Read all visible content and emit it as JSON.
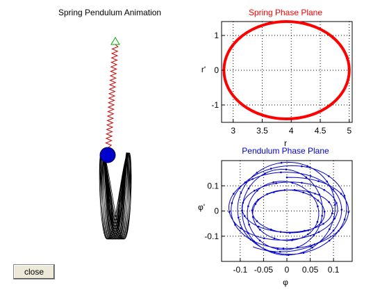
{
  "window": {
    "animation_title": "Spring Pendulum Animation",
    "close_label": "close"
  },
  "chart_data": [
    {
      "type": "line",
      "title": "Spring Phase Plane",
      "xlabel": "r",
      "ylabel": "r'",
      "xlim": [
        2.8,
        5.05
      ],
      "ylim": [
        -1.5,
        1.4
      ],
      "xticks": [
        "3",
        "3.5",
        "4",
        "4.5",
        "5"
      ],
      "yticks": [
        "1",
        "0",
        "-1"
      ],
      "grid": true,
      "color": "#ff0000",
      "series": [
        {
          "shape": "ellipse",
          "center": [
            3.92,
            0.0
          ],
          "radius_x": 1.08,
          "radius_y": 1.4
        }
      ]
    },
    {
      "type": "line",
      "title": "Pendulum Phase Plane",
      "xlabel": "φ",
      "ylabel": "φ'",
      "xlim": [
        -0.14,
        0.14
      ],
      "ylim": [
        -0.2,
        0.2
      ],
      "xticks": [
        "-0.1",
        "-0.05",
        "0",
        "0.05",
        "0.1"
      ],
      "yticks": [
        "0.1",
        "0",
        "-0.1"
      ],
      "grid": true,
      "color": "#0000cc",
      "series": [
        {
          "shape": "precessing-ellipses",
          "amplitude_x": 0.13,
          "amplitude_y": 0.185
        }
      ]
    }
  ],
  "animation": {
    "spring_color": "#cc0000",
    "anchor_color": "#00aa00",
    "bob_color": "#0000cc",
    "trace_color": "#000000"
  }
}
